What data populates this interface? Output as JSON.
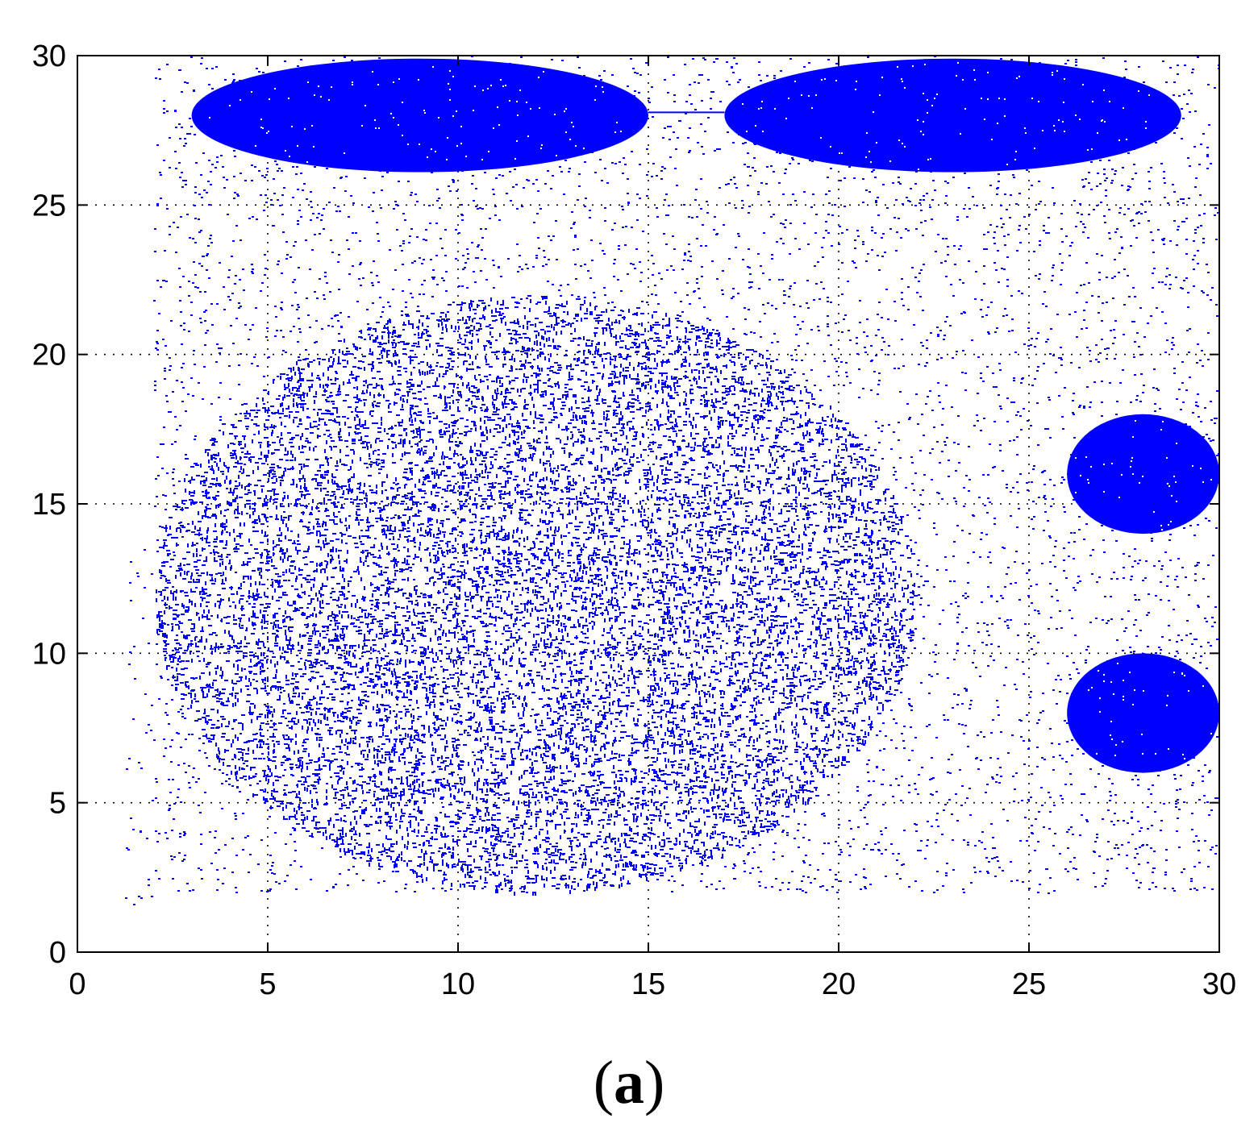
{
  "chart_data": {
    "type": "scatter",
    "title": "",
    "xlabel": "",
    "ylabel": "",
    "xlim": [
      0,
      30
    ],
    "ylim": [
      0,
      30
    ],
    "x_ticks": [
      "0",
      "5",
      "10",
      "15",
      "20",
      "25",
      "30"
    ],
    "y_ticks": [
      "0",
      "5",
      "10",
      "15",
      "20",
      "25",
      "30"
    ],
    "grid": "dotted",
    "marker_color": "#0000ff",
    "regions": [
      {
        "shape": "ellipse",
        "center": [
          9,
          28
        ],
        "radius_x": 6,
        "radius_y": 1.9,
        "density": "solid"
      },
      {
        "shape": "ellipse",
        "center": [
          23,
          28
        ],
        "radius_x": 6,
        "radius_y": 1.9,
        "density": "solid"
      },
      {
        "shape": "ellipse",
        "center": [
          12,
          12
        ],
        "radius_x": 10,
        "radius_y": 10,
        "density": "medium"
      },
      {
        "shape": "ellipse",
        "center": [
          28,
          16
        ],
        "radius_x": 2,
        "radius_y": 2,
        "density": "solid"
      },
      {
        "shape": "ellipse",
        "center": [
          28,
          8
        ],
        "radius_x": 2,
        "radius_y": 2,
        "density": "solid"
      }
    ],
    "segments": [
      {
        "x": [
          15,
          17
        ],
        "y": [
          28.1,
          28.1
        ]
      }
    ],
    "background_scatter": {
      "xlim": [
        2,
        30
      ],
      "ylim": [
        2,
        30
      ],
      "density": "sparse"
    }
  },
  "caption": {
    "open": "(",
    "letter": "a",
    "close": ")"
  }
}
